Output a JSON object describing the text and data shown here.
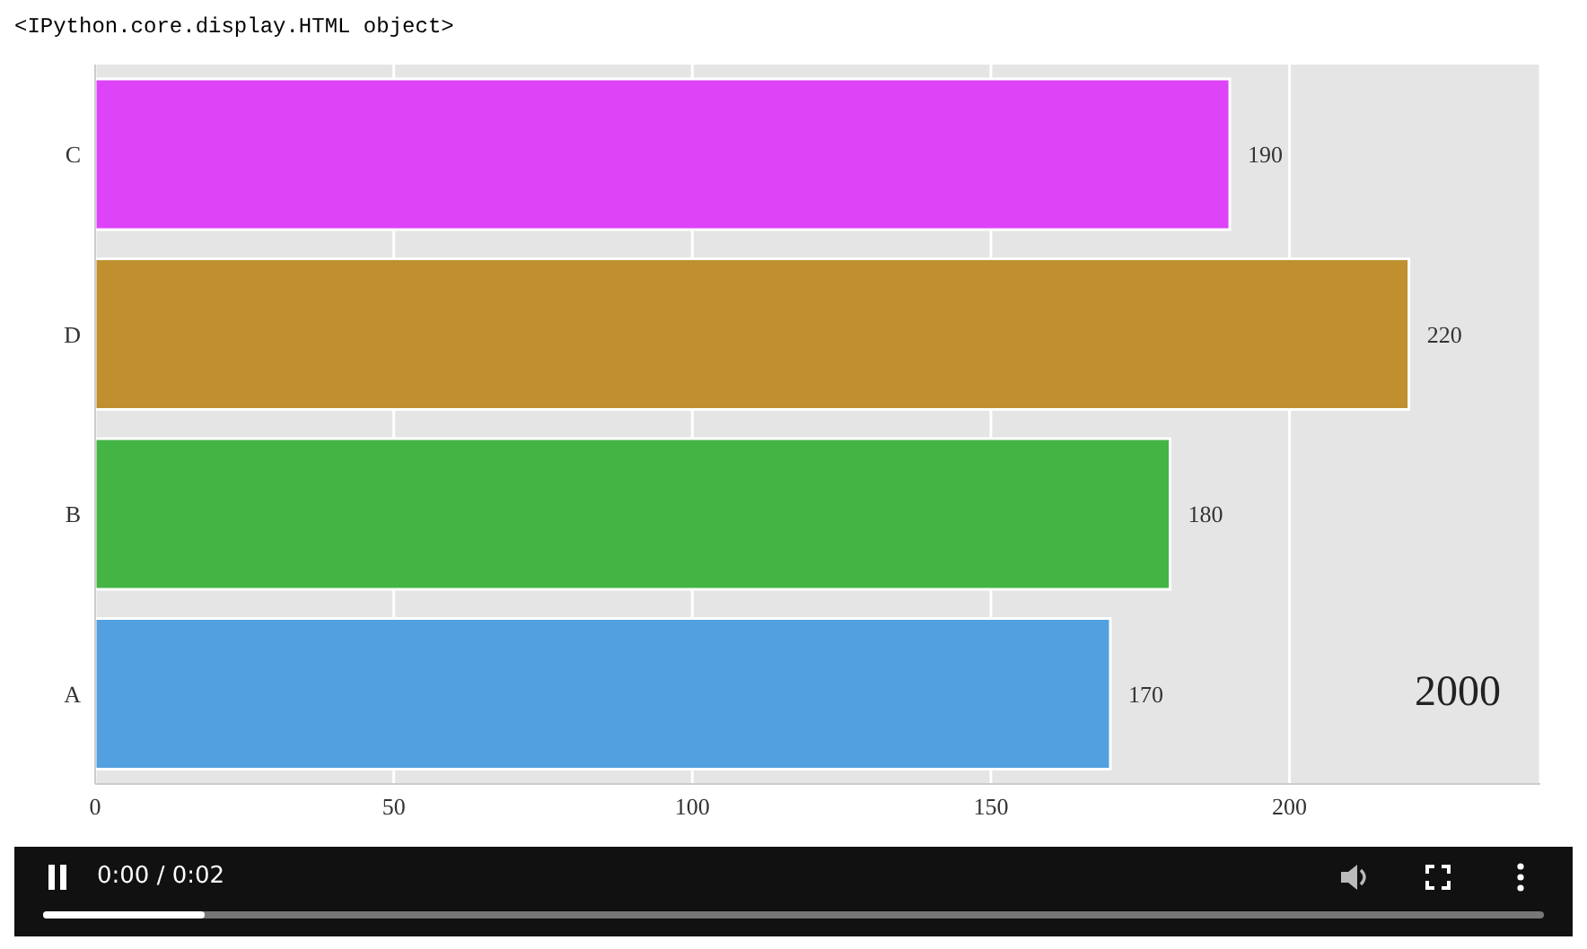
{
  "chart_data": {
    "type": "bar",
    "orientation": "horizontal",
    "categories": [
      "C",
      "D",
      "B",
      "A"
    ],
    "values": [
      190,
      220,
      180,
      170
    ],
    "colors": [
      "#dd44f8",
      "#c09030",
      "#44b444",
      "#53a0e0"
    ],
    "xlim": [
      0,
      242
    ],
    "xticks": [
      0,
      50,
      100,
      150,
      200
    ],
    "grid": "x",
    "data_labels": true,
    "annotations": [
      "<IPython.core.display.HTML object>",
      "2000",
      "0:00 / 0:02"
    ]
  }
}
